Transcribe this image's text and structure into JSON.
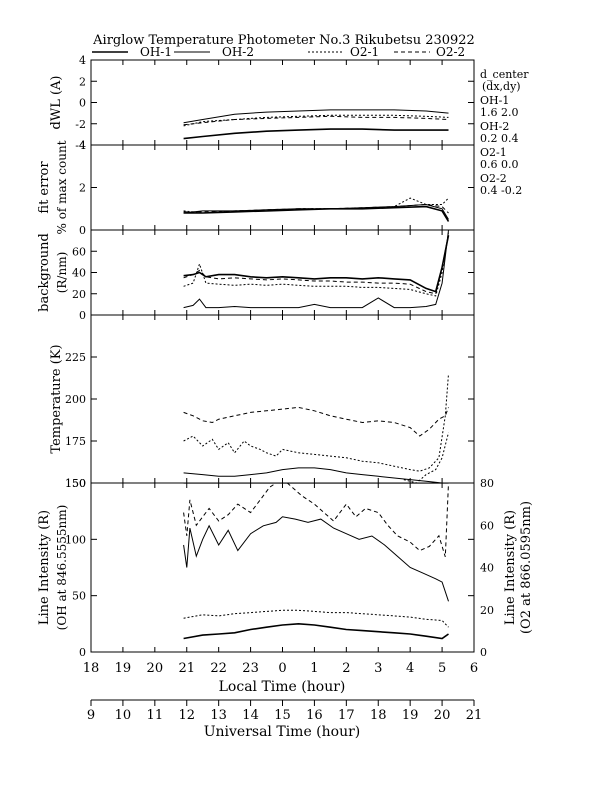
{
  "title": "Airglow Temperature Photometer No.3   Rikubetsu    230922",
  "legend": [
    "OH-1",
    "OH-2",
    "O2-1",
    "O2-2"
  ],
  "side_notes": {
    "d_center_title": "d_center",
    "d_center_sub": "(dx,dy)",
    "oh1_label": "OH-1",
    "oh1_values": "1.6   2.0",
    "oh2_label": "OH-2",
    "oh2_values": "0.2   0.4",
    "o21_label": "O2-1",
    "o21_values": "0.6   0.0",
    "o22_label": "O2-2",
    "o22_values": "0.4   -0.2"
  },
  "colors": {
    "line": "#000000",
    "background": "#ffffff"
  },
  "chart_data": {
    "type": "line",
    "x_axis_local": {
      "label": "Local Time (hour)",
      "ticks": [
        "18",
        "19",
        "20",
        "21",
        "22",
        "23",
        "0",
        "1",
        "2",
        "3",
        "4",
        "5",
        "6"
      ],
      "range": [
        18,
        30
      ]
    },
    "x_axis_ut": {
      "label": "Universal Time (hour)",
      "ticks": [
        "9",
        "10",
        "11",
        "12",
        "13",
        "14",
        "15",
        "16",
        "17",
        "18",
        "19",
        "20",
        "21"
      ],
      "range": [
        9,
        21
      ]
    },
    "panels": [
      {
        "id": "dwl",
        "ylabel": "dWL (A)",
        "ylim": [
          -4,
          4
        ],
        "yticks": [
          "4",
          "2",
          "0",
          "-2",
          "-4"
        ],
        "series": [
          {
            "name": "OH-1",
            "style": "solid",
            "width": 1.6,
            "x": [
              20.9,
              21.5,
              22.5,
              23.5,
              24.5,
              25.5,
              26.5,
              27.5,
              28.5,
              29.2
            ],
            "y": [
              -3.4,
              -3.2,
              -2.9,
              -2.7,
              -2.6,
              -2.5,
              -2.5,
              -2.6,
              -2.6,
              -2.6
            ]
          },
          {
            "name": "OH-2",
            "style": "solid",
            "width": 1.0,
            "x": [
              20.9,
              21.5,
              22.5,
              23.5,
              24.5,
              25.5,
              26.5,
              27.5,
              28.5,
              29.2
            ],
            "y": [
              -1.9,
              -1.6,
              -1.1,
              -0.9,
              -0.8,
              -0.7,
              -0.7,
              -0.7,
              -0.8,
              -1.0
            ]
          },
          {
            "name": "O2-1",
            "style": "dotted",
            "width": 1.0,
            "x": [
              20.9,
              21.5,
              22.5,
              23.5,
              24.5,
              25.5,
              26.5,
              27.5,
              28.5,
              29.2
            ],
            "y": [
              -2.2,
              -1.8,
              -1.6,
              -1.4,
              -1.3,
              -1.2,
              -1.2,
              -1.2,
              -1.3,
              -1.4
            ]
          },
          {
            "name": "O2-2",
            "style": "dashed",
            "width": 1.0,
            "x": [
              20.9,
              21.5,
              22.5,
              23.5,
              24.5,
              25.5,
              26.5,
              27.5,
              28.5,
              29.2
            ],
            "y": [
              -2.1,
              -1.9,
              -1.6,
              -1.5,
              -1.4,
              -1.3,
              -1.4,
              -1.4,
              -1.5,
              -1.6
            ]
          }
        ]
      },
      {
        "id": "fit",
        "ylabel": "fit error",
        "ylabel2": "% of max count",
        "ylim": [
          0,
          4
        ],
        "yticks": [
          "4",
          "2",
          "0"
        ],
        "series": [
          {
            "name": "OH-1",
            "style": "solid",
            "width": 1.6,
            "x": [
              20.9,
              21.5,
              22.5,
              23.5,
              24.5,
              25.5,
              26.5,
              27.5,
              28.5,
              29.0,
              29.2
            ],
            "y": [
              0.8,
              0.8,
              0.85,
              0.9,
              0.95,
              1.0,
              1.0,
              1.05,
              1.1,
              0.9,
              0.4
            ]
          },
          {
            "name": "OH-2",
            "style": "solid",
            "width": 1.0,
            "x": [
              20.9,
              21.5,
              22.5,
              23.5,
              24.5,
              25.5,
              26.5,
              27.5,
              28.5,
              29.0,
              29.2
            ],
            "y": [
              0.8,
              0.9,
              0.9,
              0.95,
              1.0,
              1.0,
              1.05,
              1.1,
              1.2,
              1.0,
              0.5
            ]
          },
          {
            "name": "O2-1",
            "style": "dotted",
            "width": 1.0,
            "x": [
              20.9,
              21.5,
              22.5,
              23.5,
              24.5,
              25.5,
              26.5,
              27.5,
              28.0,
              28.5,
              29.0,
              29.2
            ],
            "y": [
              0.9,
              0.8,
              0.9,
              0.9,
              1.0,
              1.0,
              1.0,
              1.1,
              1.5,
              1.2,
              1.2,
              1.5
            ]
          },
          {
            "name": "O2-2",
            "style": "dashed",
            "width": 1.0,
            "x": [
              20.9,
              21.5,
              22.5,
              23.5,
              24.5,
              25.5,
              26.5,
              27.5,
              28.5,
              29.0,
              29.2
            ],
            "y": [
              0.85,
              0.85,
              0.9,
              0.95,
              1.0,
              1.0,
              1.05,
              1.1,
              1.2,
              1.1,
              0.8
            ]
          }
        ]
      },
      {
        "id": "background",
        "ylabel": "background",
        "ylabel2": "(R/nm)",
        "ylim": [
          0,
          80
        ],
        "yticks": [
          "60",
          "40",
          "20",
          "0"
        ],
        "series": [
          {
            "name": "OH-1",
            "style": "solid",
            "width": 1.6,
            "x": [
              20.9,
              21.2,
              21.4,
              21.6,
              22.0,
              22.5,
              23.0,
              23.5,
              24.0,
              24.5,
              25.0,
              25.5,
              26.0,
              26.5,
              27.0,
              27.5,
              28.0,
              28.5,
              28.8,
              29.0,
              29.2
            ],
            "y": [
              37,
              38,
              40,
              36,
              38,
              38,
              36,
              35,
              36,
              35,
              34,
              35,
              35,
              34,
              35,
              34,
              33,
              25,
              22,
              45,
              75
            ]
          },
          {
            "name": "OH-2",
            "style": "solid",
            "width": 1.0,
            "x": [
              20.9,
              21.2,
              21.4,
              21.6,
              22.0,
              22.5,
              23.0,
              23.5,
              24.0,
              24.5,
              25.0,
              25.5,
              26.0,
              26.5,
              27.0,
              27.5,
              28.0,
              28.5,
              28.8,
              29.0,
              29.2
            ],
            "y": [
              7,
              9,
              15,
              7,
              7,
              8,
              7,
              7,
              7,
              7,
              10,
              7,
              7,
              7,
              16,
              7,
              7,
              8,
              10,
              30,
              80
            ]
          },
          {
            "name": "O2-1",
            "style": "dotted",
            "width": 1.0,
            "x": [
              20.9,
              21.2,
              21.4,
              21.6,
              22.0,
              22.5,
              23.0,
              23.5,
              24.0,
              24.5,
              25.0,
              25.5,
              26.0,
              26.5,
              27.0,
              27.5,
              28.0,
              28.5,
              28.8,
              29.0,
              29.2
            ],
            "y": [
              27,
              30,
              48,
              30,
              29,
              28,
              29,
              28,
              29,
              28,
              27,
              27,
              27,
              26,
              26,
              25,
              24,
              20,
              18,
              40,
              78
            ]
          },
          {
            "name": "O2-2",
            "style": "dashed",
            "width": 1.0,
            "x": [
              20.9,
              21.2,
              21.4,
              21.6,
              22.0,
              22.5,
              23.0,
              23.5,
              24.0,
              24.5,
              25.0,
              25.5,
              26.0,
              26.5,
              27.0,
              27.5,
              28.0,
              28.5,
              28.8,
              29.0,
              29.2
            ],
            "y": [
              35,
              38,
              42,
              36,
              34,
              35,
              34,
              33,
              34,
              33,
              32,
              32,
              31,
              31,
              30,
              30,
              29,
              22,
              20,
              45,
              76
            ]
          }
        ]
      },
      {
        "id": "temperature",
        "ylabel": "Temperature (K)",
        "ylim": [
          150,
          250
        ],
        "yticks": [
          "225",
          "200",
          "175",
          "150"
        ],
        "series": [
          {
            "name": "OH-1",
            "style": "solid",
            "width": 1.0,
            "x": [
              20.9,
              21.5,
              22.0,
              22.5,
              23.0,
              23.5,
              24.0,
              24.5,
              25.0,
              25.5,
              26.0,
              26.5,
              27.0,
              27.5,
              28.0,
              28.5,
              29.0,
              29.2
            ],
            "y": [
              156,
              155,
              154,
              154,
              155,
              156,
              158,
              159,
              159,
              158,
              156,
              155,
              154,
              153,
              152,
              151,
              150,
              150
            ]
          },
          {
            "name": "O2-1",
            "style": "dotted",
            "width": 1.0,
            "x": [
              20.9,
              21.2,
              21.5,
              21.8,
              22.0,
              22.3,
              22.5,
              22.8,
              23.0,
              23.3,
              23.5,
              23.8,
              24.0,
              24.5,
              25.0,
              25.5,
              26.0,
              26.5,
              27.0,
              27.5,
              28.0,
              28.3,
              28.6,
              28.9,
              29.1,
              29.2
            ],
            "y": [
              175,
              178,
              172,
              176,
              170,
              174,
              168,
              175,
              172,
              170,
              168,
              166,
              170,
              168,
              167,
              166,
              165,
              163,
              162,
              160,
              158,
              157,
              159,
              165,
              190,
              215
            ]
          },
          {
            "name": "O2-2",
            "style": "dashed",
            "width": 1.0,
            "x": [
              20.9,
              21.2,
              21.5,
              21.8,
              22.0,
              22.5,
              23.0,
              23.5,
              24.0,
              24.5,
              25.0,
              25.5,
              26.0,
              26.5,
              27.0,
              27.5,
              28.0,
              28.3,
              28.6,
              28.9,
              29.1,
              29.2
            ],
            "y": [
              192,
              190,
              187,
              186,
              188,
              190,
              192,
              193,
              194,
              195,
              193,
              190,
              188,
              186,
              187,
              186,
              183,
              178,
              182,
              188,
              190,
              195
            ]
          },
          {
            "name": "O2-2 low",
            "style": "dotted",
            "width": 1.0,
            "x": [
              27.8,
              28.2,
              28.5,
              28.8,
              29.0,
              29.2
            ],
            "y": [
              152,
              150,
              155,
              158,
              165,
              180
            ]
          }
        ]
      },
      {
        "id": "intensity",
        "ylabel": "Line Intensity (R)",
        "ylabel2": "(OH at 846.5555nm)",
        "ylabel_right": "Line Intensity (R)",
        "ylabel_right2": "(O2 at 866.0595nm)",
        "ylim": [
          0,
          150
        ],
        "ylim_right": [
          0,
          80
        ],
        "yticks": [
          "150",
          "100",
          "50",
          "0"
        ],
        "yticks_right": [
          "80",
          "60",
          "40",
          "20",
          "0"
        ],
        "series": [
          {
            "name": "OH-1",
            "style": "solid",
            "width": 1.6,
            "axis": "left",
            "x": [
              20.9,
              21.5,
              22.0,
              22.5,
              23.0,
              23.5,
              24.0,
              24.5,
              25.0,
              25.5,
              26.0,
              26.5,
              27.0,
              27.5,
              28.0,
              28.5,
              29.0,
              29.2
            ],
            "y": [
              12,
              15,
              16,
              17,
              20,
              22,
              24,
              25,
              24,
              22,
              20,
              19,
              18,
              17,
              16,
              14,
              12,
              16
            ]
          },
          {
            "name": "OH-2",
            "style": "solid",
            "width": 1.0,
            "axis": "left",
            "x": [
              20.9,
              21.0,
              21.1,
              21.3,
              21.5,
              21.7,
              22.0,
              22.3,
              22.6,
              23.0,
              23.4,
              23.8,
              24.0,
              24.4,
              24.8,
              25.2,
              25.6,
              26.0,
              26.4,
              26.8,
              27.2,
              27.6,
              28.0,
              28.4,
              28.8,
              29.0,
              29.2
            ],
            "y": [
              95,
              75,
              110,
              85,
              100,
              112,
              95,
              108,
              90,
              105,
              112,
              115,
              120,
              118,
              115,
              118,
              110,
              105,
              100,
              103,
              95,
              85,
              75,
              70,
              65,
              62,
              45
            ]
          },
          {
            "name": "O2-1",
            "style": "dotted",
            "width": 1.0,
            "axis": "left",
            "x": [
              20.9,
              21.5,
              22.0,
              22.5,
              23.0,
              23.5,
              24.0,
              24.5,
              25.0,
              25.5,
              26.0,
              26.5,
              27.0,
              27.5,
              28.0,
              28.5,
              29.0,
              29.2
            ],
            "y": [
              30,
              33,
              32,
              34,
              35,
              36,
              37,
              37,
              36,
              35,
              35,
              34,
              33,
              32,
              31,
              29,
              28,
              22
            ]
          },
          {
            "name": "O2-2",
            "style": "dashed",
            "width": 1.0,
            "axis": "right",
            "x": [
              20.9,
              21.0,
              21.1,
              21.3,
              21.5,
              21.7,
              22.0,
              22.3,
              22.6,
              23.0,
              23.3,
              23.6,
              24.0,
              24.3,
              24.6,
              25.0,
              25.3,
              25.6,
              26.0,
              26.3,
              26.6,
              27.0,
              27.3,
              27.6,
              28.0,
              28.3,
              28.6,
              28.9,
              29.1,
              29.2
            ],
            "y": [
              66,
              55,
              72,
              60,
              64,
              68,
              62,
              65,
              70,
              66,
              72,
              78,
              82,
              78,
              74,
              70,
              66,
              62,
              70,
              64,
              68,
              66,
              60,
              55,
              52,
              48,
              50,
              55,
              45,
              80
            ]
          },
          {
            "name": "O2-2 ref",
            "style": "solid",
            "width": 1.2,
            "axis": "left",
            "x": [
              20.9,
              29.2
            ],
            "y": [
              150,
              150
            ]
          }
        ]
      }
    ]
  }
}
